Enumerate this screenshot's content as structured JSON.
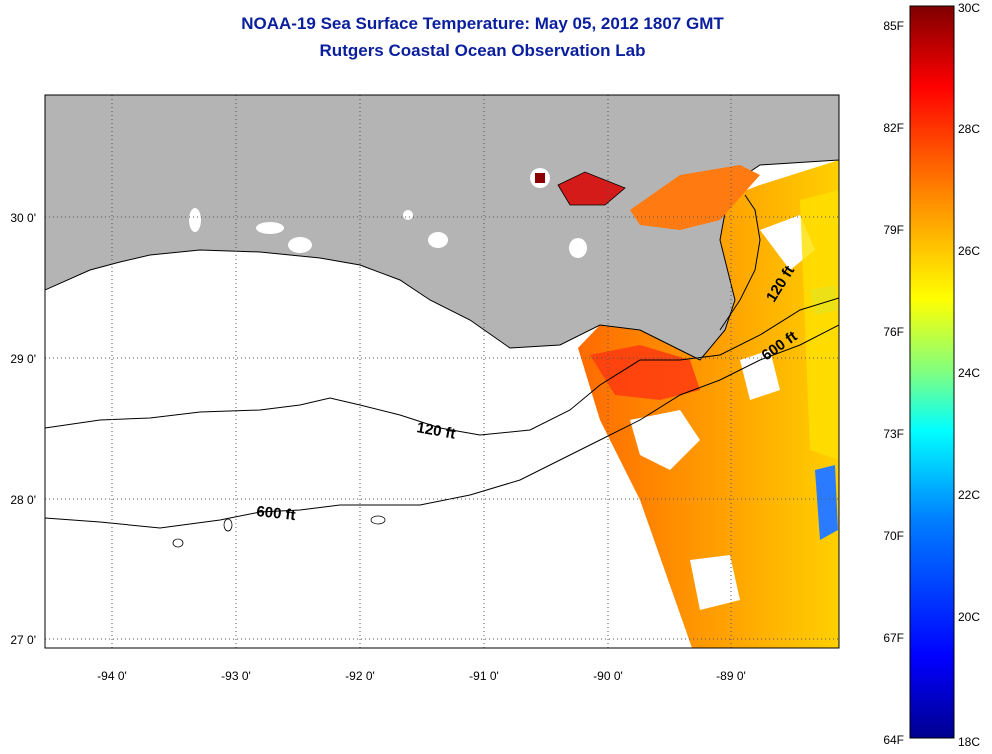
{
  "title_line1": "NOAA-19 Sea Surface Temperature:  May 05, 2012 1807 GMT",
  "title_line2": "Rutgers Coastal Ocean Observation Lab",
  "map": {
    "lon_ticks": [
      "-94 0'",
      "-93 0'",
      "-92 0'",
      "-91 0'",
      "-90 0'",
      "-89 0'"
    ],
    "lat_ticks": [
      "30 0'",
      "29 0'",
      "28 0'",
      "27 0'"
    ],
    "land_color": "#b4b4b4",
    "contours": [
      {
        "label": "120 ft"
      },
      {
        "label": "600 ft"
      },
      {
        "label": "120 ft"
      },
      {
        "label": "600 ft"
      }
    ]
  },
  "colorbar": {
    "fahrenheit": [
      "85F",
      "82F",
      "79F",
      "76F",
      "73F",
      "70F",
      "67F",
      "64F"
    ],
    "celsius": [
      "30C",
      "28C",
      "26C",
      "24C",
      "22C",
      "20C",
      "18C"
    ],
    "colors": [
      "#7f0000",
      "#ff0000",
      "#ff8000",
      "#ffff00",
      "#80ff80",
      "#00ffff",
      "#0080ff",
      "#0000ff",
      "#00008f"
    ]
  }
}
